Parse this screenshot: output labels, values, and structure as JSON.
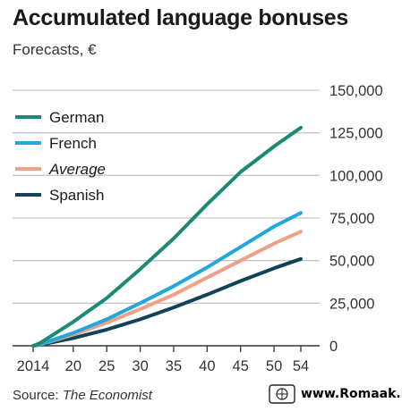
{
  "title": "Accumulated language bonuses",
  "subtitle": "Forecasts, €",
  "source": {
    "label": "Source: ",
    "publication": "The Economist"
  },
  "watermark": "www.Romaak.ir",
  "colors": {
    "German": "#1b8a74",
    "French": "#22a7dc",
    "Average": "#efa086",
    "Spanish": "#124257",
    "grid": "#c6c6c6",
    "axis": "#333333"
  },
  "chart_data": {
    "type": "line",
    "x_tick_labels": [
      "2014",
      "20",
      "25",
      "30",
      "35",
      "40",
      "45",
      "50",
      "54"
    ],
    "x_ticks": [
      2014,
      2020,
      2025,
      2030,
      2035,
      2040,
      2045,
      2050,
      2054
    ],
    "y_tick_labels": [
      "0",
      "25,000",
      "50,000",
      "75,000",
      "100,000",
      "125,000",
      "150,000"
    ],
    "y_ticks": [
      0,
      25000,
      50000,
      75000,
      100000,
      125000,
      150000
    ],
    "xlim": [
      2014,
      2054
    ],
    "ylim": [
      0,
      150000
    ],
    "grid": true,
    "legend_position": "top-left",
    "x": [
      2014,
      2015,
      2020,
      2025,
      2030,
      2035,
      2040,
      2045,
      2050,
      2054
    ],
    "series": [
      {
        "name": "German",
        "italic": false,
        "values": [
          0,
          1500,
          14000,
          28000,
          45000,
          63000,
          83000,
          102000,
          117000,
          128000
        ]
      },
      {
        "name": "French",
        "italic": false,
        "values": [
          0,
          800,
          7500,
          15500,
          25000,
          35000,
          46000,
          58000,
          70000,
          78000
        ]
      },
      {
        "name": "Average",
        "italic": true,
        "values": [
          0,
          700,
          6500,
          13500,
          21500,
          30000,
          40000,
          50000,
          60000,
          67000
        ]
      },
      {
        "name": "Spanish",
        "italic": false,
        "values": [
          0,
          500,
          4500,
          9500,
          15500,
          22500,
          30000,
          38000,
          45500,
          51000
        ]
      }
    ]
  }
}
